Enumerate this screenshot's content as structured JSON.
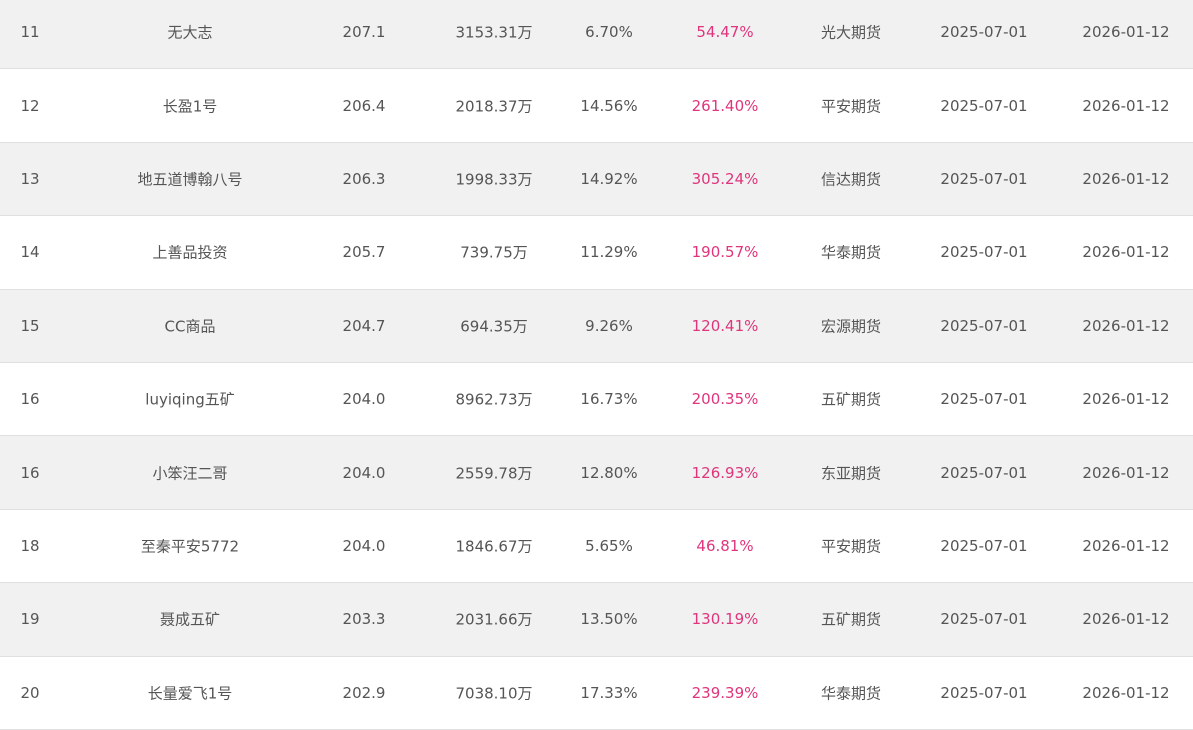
{
  "colors": {
    "return": "#e0347c",
    "text": "#555555",
    "alt_row": "#f1f1f1"
  },
  "rows": [
    {
      "rank": "11",
      "name": "无大志",
      "score": "207.1",
      "amount": "3153.31万",
      "pct": "6.70%",
      "return": "54.47%",
      "company": "光大期货",
      "start": "2025-07-01",
      "end": "2026-01-12"
    },
    {
      "rank": "12",
      "name": "长盈1号",
      "score": "206.4",
      "amount": "2018.37万",
      "pct": "14.56%",
      "return": "261.40%",
      "company": "平安期货",
      "start": "2025-07-01",
      "end": "2026-01-12"
    },
    {
      "rank": "13",
      "name": "地五道博翰八号",
      "score": "206.3",
      "amount": "1998.33万",
      "pct": "14.92%",
      "return": "305.24%",
      "company": "信达期货",
      "start": "2025-07-01",
      "end": "2026-01-12"
    },
    {
      "rank": "14",
      "name": "上善品投资",
      "score": "205.7",
      "amount": "739.75万",
      "pct": "11.29%",
      "return": "190.57%",
      "company": "华泰期货",
      "start": "2025-07-01",
      "end": "2026-01-12"
    },
    {
      "rank": "15",
      "name": "CC商品",
      "score": "204.7",
      "amount": "694.35万",
      "pct": "9.26%",
      "return": "120.41%",
      "company": "宏源期货",
      "start": "2025-07-01",
      "end": "2026-01-12"
    },
    {
      "rank": "16",
      "name": "luyiqing五矿",
      "score": "204.0",
      "amount": "8962.73万",
      "pct": "16.73%",
      "return": "200.35%",
      "company": "五矿期货",
      "start": "2025-07-01",
      "end": "2026-01-12"
    },
    {
      "rank": "16",
      "name": "小笨汪二哥",
      "score": "204.0",
      "amount": "2559.78万",
      "pct": "12.80%",
      "return": "126.93%",
      "company": "东亚期货",
      "start": "2025-07-01",
      "end": "2026-01-12"
    },
    {
      "rank": "18",
      "name": "至秦平安5772",
      "score": "204.0",
      "amount": "1846.67万",
      "pct": "5.65%",
      "return": "46.81%",
      "company": "平安期货",
      "start": "2025-07-01",
      "end": "2026-01-12"
    },
    {
      "rank": "19",
      "name": "聂成五矿",
      "score": "203.3",
      "amount": "2031.66万",
      "pct": "13.50%",
      "return": "130.19%",
      "company": "五矿期货",
      "start": "2025-07-01",
      "end": "2026-01-12"
    },
    {
      "rank": "20",
      "name": "长量爱飞1号",
      "score": "202.9",
      "amount": "7038.10万",
      "pct": "17.33%",
      "return": "239.39%",
      "company": "华泰期货",
      "start": "2025-07-01",
      "end": "2026-01-12"
    }
  ]
}
